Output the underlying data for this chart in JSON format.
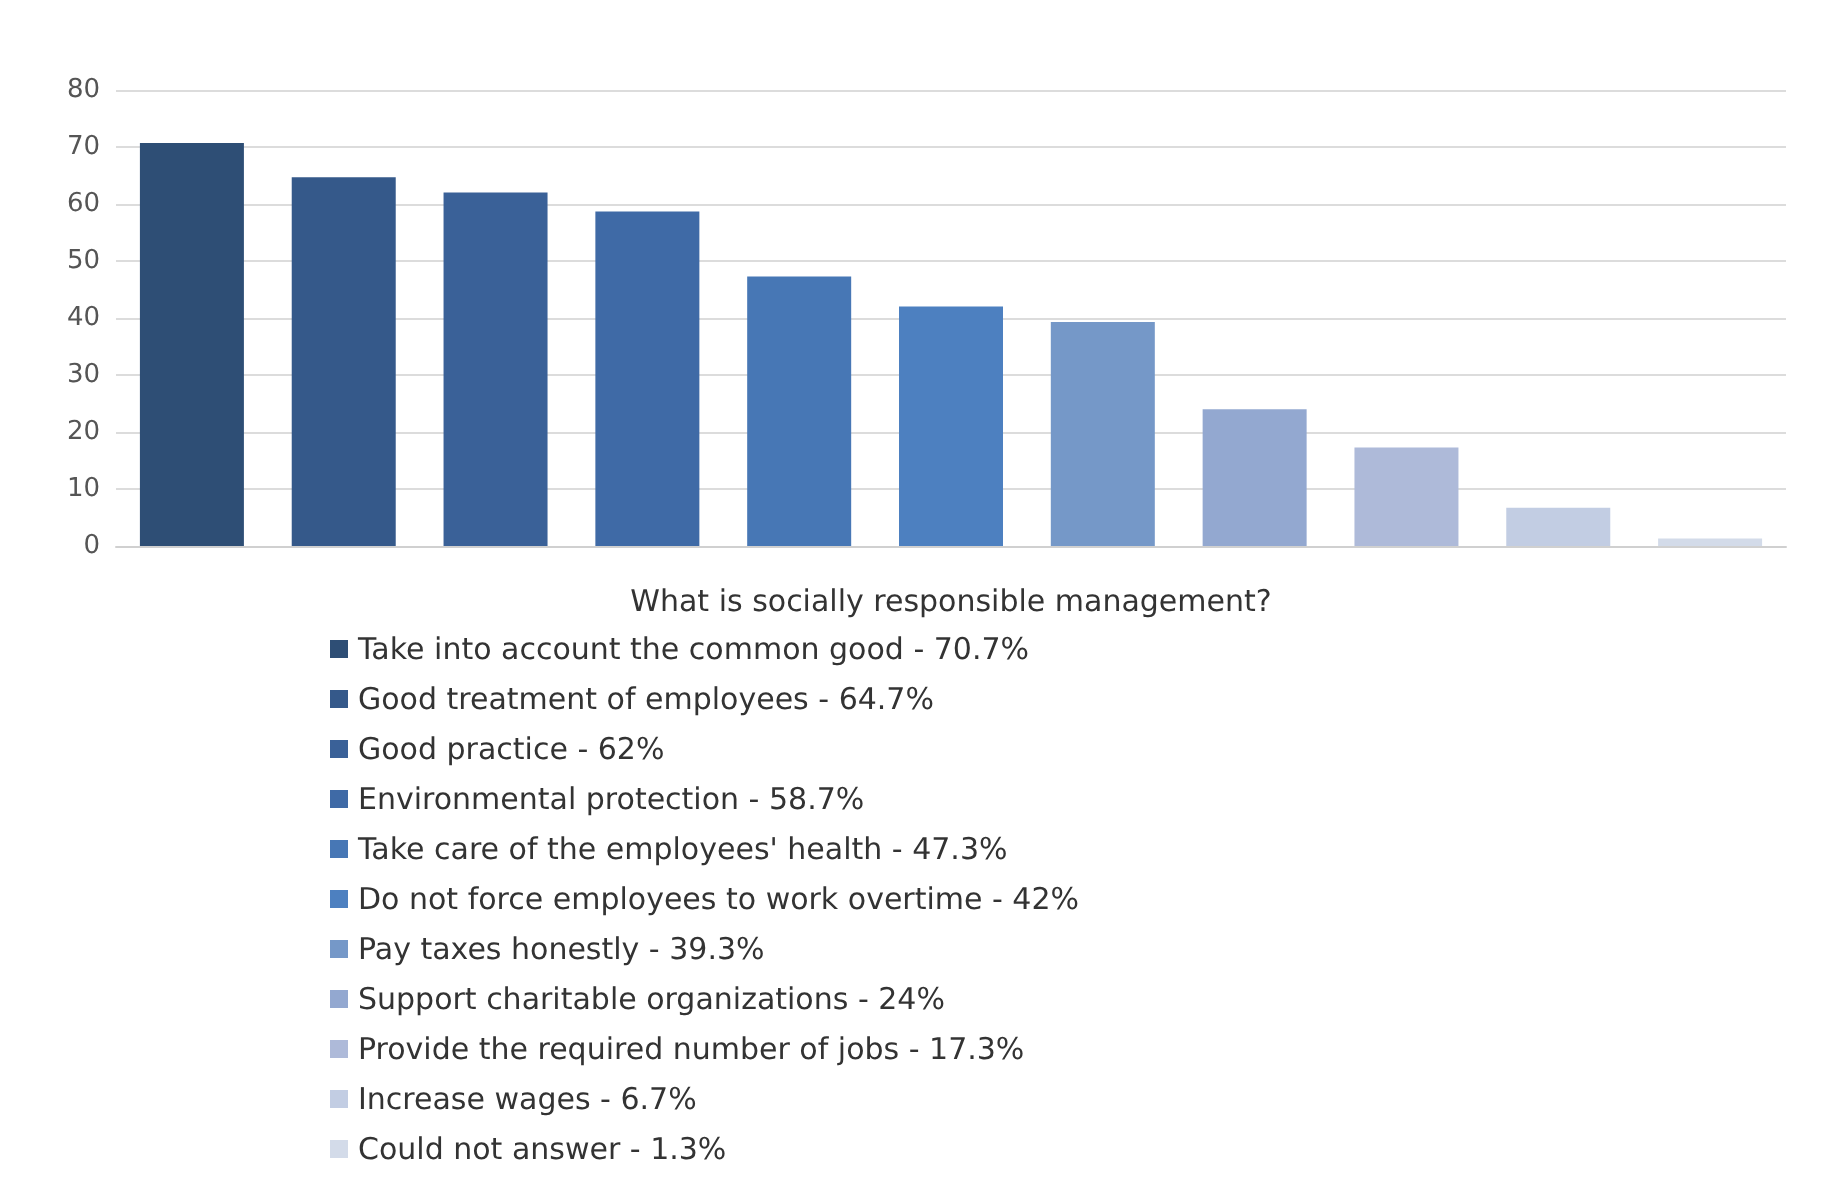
{
  "chart_data": {
    "type": "bar",
    "xlabel": "What is socially responsible management?",
    "categories": [
      null,
      null,
      null,
      null,
      null,
      null,
      null,
      null,
      null,
      null,
      null
    ],
    "series": [
      {
        "name": "Take into account the common good - 70.7%",
        "color": "#2e4e75",
        "values": [
          70.7,
          null,
          null,
          null,
          null,
          null,
          null,
          null,
          null,
          null,
          null
        ]
      },
      {
        "name": "Good treatment of employees - 64.7%",
        "color": "#35598a",
        "values": [
          null,
          64.7,
          null,
          null,
          null,
          null,
          null,
          null,
          null,
          null,
          null
        ]
      },
      {
        "name": "Good practice - 62%",
        "color": "#3a6198",
        "values": [
          null,
          null,
          62,
          null,
          null,
          null,
          null,
          null,
          null,
          null,
          null
        ]
      },
      {
        "name": "Environmental protection - 58.7%",
        "color": "#3f6aa6",
        "values": [
          null,
          null,
          null,
          58.7,
          null,
          null,
          null,
          null,
          null,
          null,
          null
        ]
      },
      {
        "name": "Take care of the employees' health - 47.3%",
        "color": "#4777b5",
        "values": [
          null,
          null,
          null,
          null,
          47.3,
          null,
          null,
          null,
          null,
          null,
          null
        ]
      },
      {
        "name": "Do not force employees to work overtime - 42%",
        "color": "#4d80c0",
        "values": [
          null,
          null,
          null,
          null,
          null,
          42,
          null,
          null,
          null,
          null,
          null
        ]
      },
      {
        "name": "Pay taxes honestly - 39.3%",
        "color": "#7598c8",
        "values": [
          null,
          null,
          null,
          null,
          null,
          null,
          39.3,
          null,
          null,
          null,
          null
        ]
      },
      {
        "name": "Support charitable organizations - 24%",
        "color": "#93a8d0",
        "values": [
          null,
          null,
          null,
          null,
          null,
          null,
          null,
          24,
          null,
          null,
          null
        ]
      },
      {
        "name": "Provide the required number of jobs - 17.3%",
        "color": "#aebad9",
        "values": [
          null,
          null,
          null,
          null,
          null,
          null,
          null,
          null,
          17.3,
          null,
          null
        ]
      },
      {
        "name": "Increase wages - 6.7%",
        "color": "#c2cde3",
        "values": [
          null,
          null,
          null,
          null,
          null,
          null,
          null,
          null,
          null,
          6.7,
          null
        ]
      },
      {
        "name": "Could not answer - 1.3%",
        "color": "#d3dbe9",
        "values": [
          null,
          null,
          null,
          null,
          null,
          null,
          null,
          null,
          null,
          null,
          1.3
        ]
      }
    ],
    "ylim": [
      0,
      80
    ],
    "yticks": [
      0,
      10,
      20,
      30,
      40,
      50,
      60,
      70,
      80
    ],
    "grid": "y",
    "legend": "bottom"
  }
}
